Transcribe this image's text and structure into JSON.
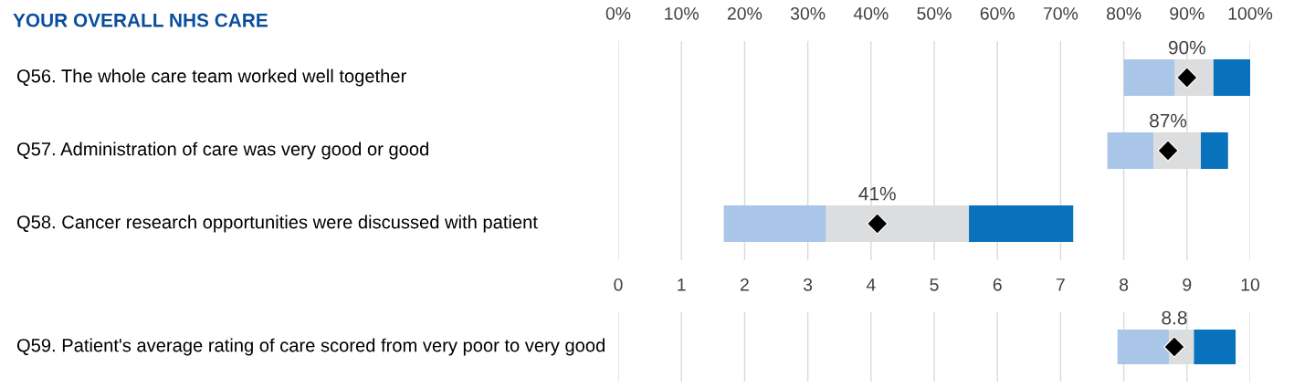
{
  "chart_data": [
    {
      "type": "bar",
      "title": "YOUR OVERALL NHS CARE",
      "orientation": "horizontal",
      "categories": [
        "Q56. The whole care team worked well together",
        "Q57. Administration of care was very good or good",
        "Q58. Cancer research opportunities were discussed with patient"
      ],
      "series": [
        {
          "color": "#a9c6e8",
          "base": [
            80.0,
            77.4,
            16.7
          ],
          "values": [
            8.1,
            7.3,
            16.2
          ]
        },
        {
          "color": "#dcddde",
          "base": [
            88.1,
            84.7,
            32.9
          ],
          "values": [
            6.1,
            7.5,
            22.6
          ]
        },
        {
          "color": "#0872bc",
          "base": [
            94.2,
            92.2,
            55.5
          ],
          "values": [
            5.8,
            4.3,
            16.5
          ]
        },
        {
          "type": "scatter",
          "marker": "diamond",
          "color": "#000000",
          "x": [
            "Q56. The whole care team worked well together",
            "Q57. Administration of care was very good or good",
            "Q58. Cancer research opportunities were discussed with patient"
          ],
          "values": [
            90,
            87,
            41
          ],
          "value_labels": [
            "90%",
            "87%",
            "41%"
          ]
        }
      ],
      "xlim": [
        0,
        100
      ],
      "xticks": [
        {
          "value": 0,
          "label": "0%"
        },
        {
          "value": 10,
          "label": "10%"
        },
        {
          "value": 20,
          "label": "20%"
        },
        {
          "value": 30,
          "label": "30%"
        },
        {
          "value": 40,
          "label": "40%"
        },
        {
          "value": 50,
          "label": "50%"
        },
        {
          "value": 60,
          "label": "60%"
        },
        {
          "value": 70,
          "label": "70%"
        },
        {
          "value": 80,
          "label": "80%"
        },
        {
          "value": 90,
          "label": "90%"
        },
        {
          "value": 100,
          "label": "100%"
        }
      ],
      "grid": "x"
    },
    {
      "type": "bar",
      "orientation": "horizontal",
      "categories": [
        "Q59. Patient's average rating of care scored from very poor to very good"
      ],
      "series": [
        {
          "color": "#a9c6e8",
          "base": [
            7.9
          ],
          "values": [
            0.82
          ]
        },
        {
          "color": "#dcddde",
          "base": [
            8.72
          ],
          "values": [
            0.39
          ]
        },
        {
          "color": "#0872bc",
          "base": [
            9.11
          ],
          "values": [
            0.66
          ]
        },
        {
          "type": "scatter",
          "marker": "diamond",
          "color": "#000000",
          "x": [
            "Q59. Patient's average rating of care scored from very poor to very good"
          ],
          "values": [
            8.8
          ],
          "value_labels": [
            "8.8"
          ]
        }
      ],
      "xlim": [
        0,
        10
      ],
      "xticks": [
        0,
        1,
        2,
        3,
        4,
        5,
        6,
        7,
        8,
        9,
        10
      ],
      "grid": "x"
    }
  ]
}
